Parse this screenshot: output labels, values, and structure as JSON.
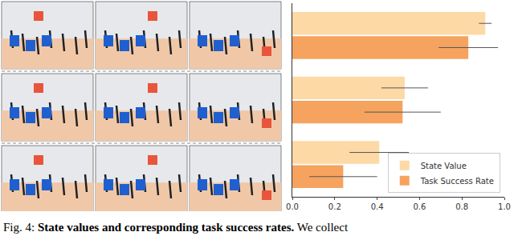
{
  "chart_data": {
    "type": "bar",
    "orientation": "horizontal",
    "categories": [
      null,
      null,
      null
    ],
    "series": [
      {
        "name": "State Value",
        "color": "#fdd9a6",
        "values": [
          0.91,
          0.53,
          0.41
        ],
        "errors": [
          0.03,
          0.11,
          0.14
        ]
      },
      {
        "name": "Task Success Rate",
        "color": "#f5a35f",
        "values": [
          0.83,
          0.52,
          0.24
        ],
        "errors": [
          0.14,
          0.18,
          0.16
        ]
      }
    ],
    "xlim": [
      0,
      1
    ],
    "xticks": [
      {
        "value": 0,
        "label": "0.0"
      },
      0.2,
      0.4,
      0.6,
      0.8,
      {
        "value": 1,
        "label": "1.0"
      }
    ],
    "tick_labels": "x",
    "grid": false,
    "legend": "lower right"
  },
  "caption": {
    "label": "Fig. 4:",
    "title": "State values and corresponding task success rates.",
    "text": "We collect"
  }
}
